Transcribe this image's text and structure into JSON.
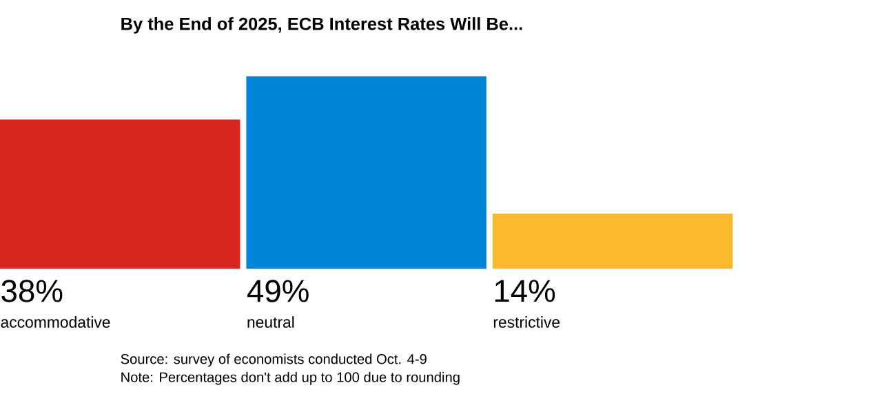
{
  "chart_data": {
    "type": "bar",
    "title": "By the End of 2025, ECB Interest Rates Will Be...",
    "categories": [
      "accommodative",
      "neutral",
      "restrictive"
    ],
    "values": [
      38,
      49,
      14
    ],
    "value_labels": [
      "38%",
      "49%",
      "14%"
    ],
    "colors": [
      "#da2620",
      "#0085d9",
      "#fbb92e"
    ],
    "annotations": [
      "Source: survey of economists conducted Oct. 4-9",
      "Note: Percentages don't add up to 100 due to rounding"
    ]
  }
}
